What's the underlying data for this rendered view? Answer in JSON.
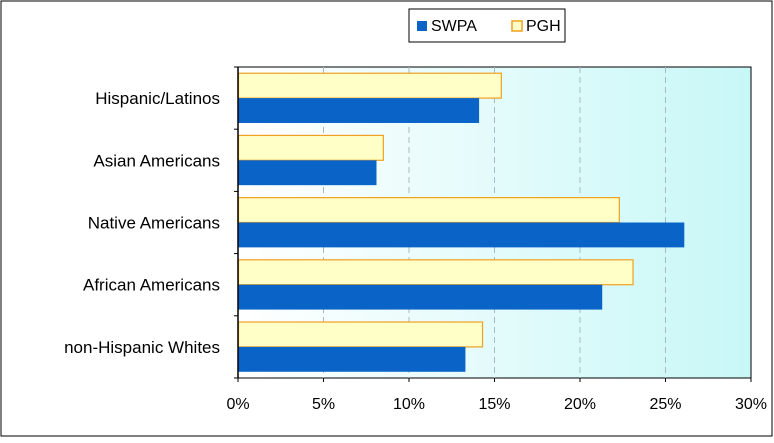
{
  "chart_data": {
    "type": "bar",
    "orientation": "horizontal",
    "categories": [
      "Hispanic/Latinos",
      "Asian Americans",
      "Native Americans",
      "African Americans",
      "non-Hispanic Whites"
    ],
    "series": [
      {
        "name": "SWPA",
        "values": [
          14.1,
          8.1,
          26.1,
          21.3,
          13.3
        ],
        "color": "#0a64c8"
      },
      {
        "name": "PGH",
        "values": [
          15.4,
          8.5,
          22.3,
          23.1,
          14.3
        ],
        "color": "#ffffc8",
        "stroke": "#f0a020"
      }
    ],
    "x_ticks": [
      "0%",
      "5%",
      "10%",
      "15%",
      "20%",
      "25%",
      "30%"
    ],
    "xlim": [
      0,
      30
    ],
    "grid": "vertical-dashed",
    "legend_position": "top",
    "plot_gradient": [
      "#ffffff",
      "#c8f7f7"
    ],
    "plot_border": "#000000"
  }
}
